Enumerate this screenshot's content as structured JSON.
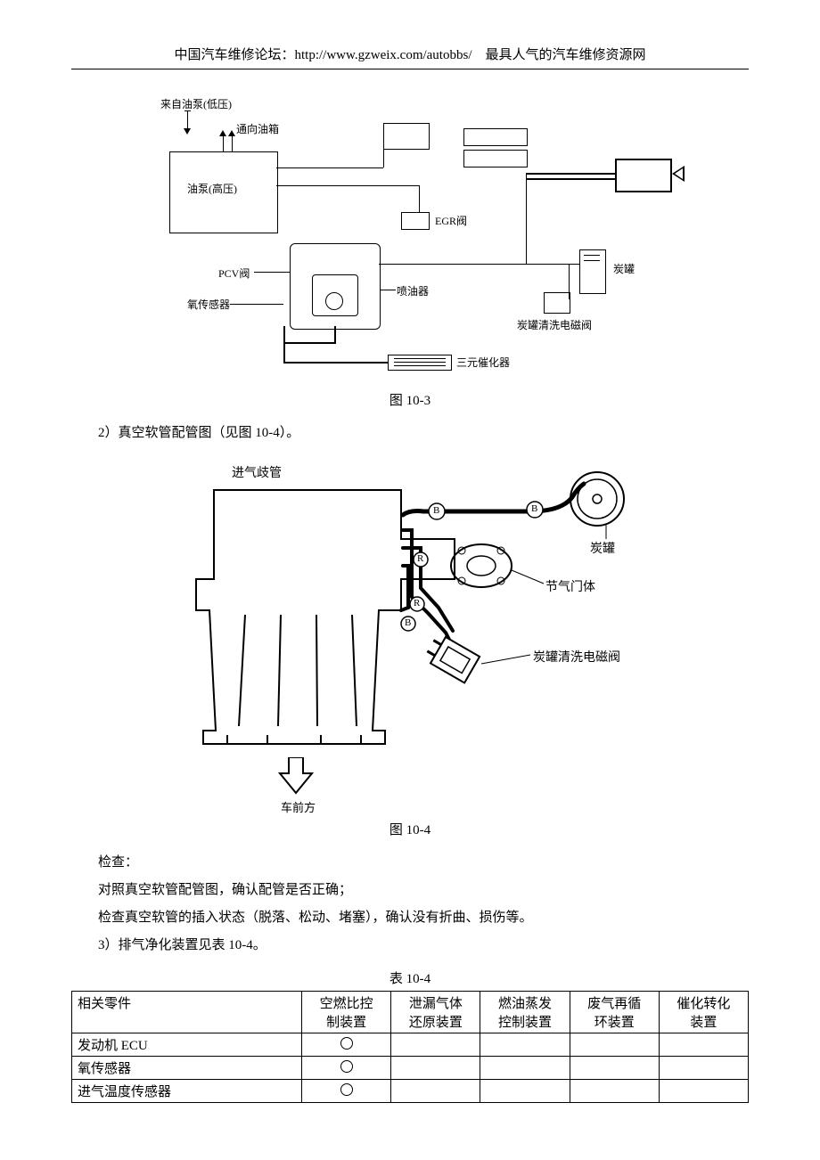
{
  "header": {
    "text_left": "中国汽车维修论坛：http://www.gzweix.com/autobbs/",
    "text_right": "最具人气的汽车维修资源网"
  },
  "fig103": {
    "caption": "图 10-3",
    "labels": {
      "from_pump": "来自油泵(低压)",
      "to_tank": "通向油箱",
      "pump_hp": "油泵(高压)",
      "pcv": "PCV阀",
      "o2_sensor": "氧传感器",
      "injector": "喷油器",
      "egr": "EGR阀",
      "canister": "炭罐",
      "canister_purge": "炭罐清洗电磁阀",
      "twc": "三元催化器"
    }
  },
  "body": {
    "line1": "2）真空软管配管图（见图 10-4）。"
  },
  "fig104": {
    "caption": "图 10-4",
    "labels": {
      "intake_manifold": "进气歧管",
      "canister": "炭罐",
      "throttle_body": "节气门体",
      "canister_purge": "炭罐清洗电磁阀",
      "front": "车前方",
      "B": "B",
      "R": "R"
    }
  },
  "check": {
    "title": "检查：",
    "l1": "对照真空软管配管图，确认配管是否正确；",
    "l2": "检查真空软管的插入状态（脱落、松动、堵塞），确认没有折曲、损伤等。",
    "l3": "3）排气净化装置见表 10-4。"
  },
  "table104": {
    "caption": "表 10-4",
    "columns": {
      "c0": "相关零件",
      "c1a": "空燃比控",
      "c1b": "制装置",
      "c2a": "泄漏气体",
      "c2b": "还原装置",
      "c3a": "燃油蒸发",
      "c3b": "控制装置",
      "c4a": "废气再循",
      "c4b": "环装置",
      "c5a": "催化转化",
      "c5b": "装置"
    },
    "rows": [
      {
        "name": "发动机 ECU",
        "marks": [
          true,
          false,
          false,
          false,
          false
        ]
      },
      {
        "name": "氧传感器",
        "marks": [
          true,
          false,
          false,
          false,
          false
        ]
      },
      {
        "name": "进气温度传感器",
        "marks": [
          true,
          false,
          false,
          false,
          false
        ]
      }
    ],
    "col_widths": [
      "34%",
      "13.2%",
      "13.2%",
      "13.2%",
      "13.2%",
      "13.2%"
    ]
  },
  "colors": {
    "text": "#000000",
    "bg": "#ffffff",
    "line": "#000000"
  }
}
